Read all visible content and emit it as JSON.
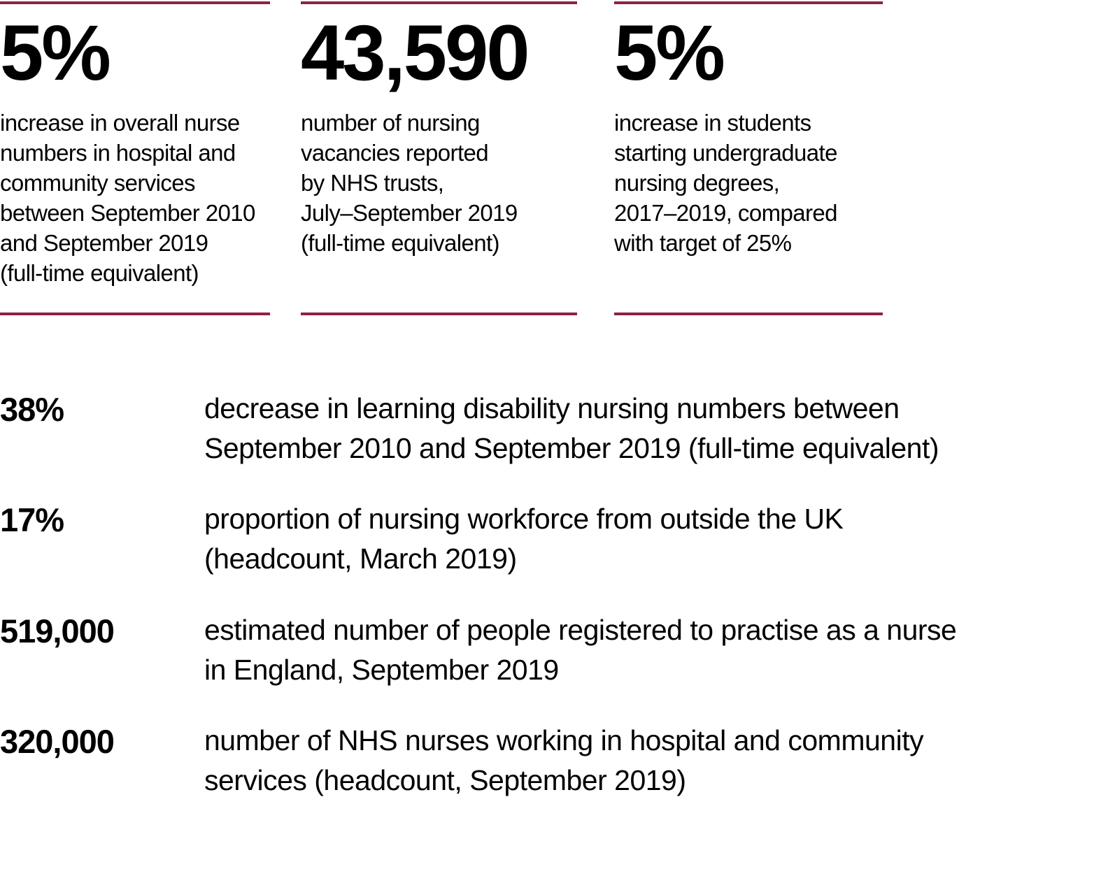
{
  "colors": {
    "accent": "#8e2145",
    "text": "#000000",
    "background": "#ffffff"
  },
  "top_stats": [
    {
      "value": "5%",
      "description_lines": [
        "increase in overall nurse",
        "numbers in hospital and",
        "community services",
        "between September 2010",
        "and September 2019",
        "(full-time equivalent)"
      ]
    },
    {
      "value": "43,590",
      "description_lines": [
        "number of nursing",
        "vacancies reported",
        "by NHS trusts,",
        "July–September 2019",
        "(full-time equivalent)"
      ]
    },
    {
      "value": "5%",
      "description_lines": [
        "increase in students",
        "starting undergraduate",
        "nursing degrees,",
        "2017–2019, compared",
        "with target of 25%"
      ]
    }
  ],
  "key_facts": [
    {
      "value": "38%",
      "description_lines": [
        "decrease in learning disability nursing numbers between",
        "September 2010 and September 2019 (full-time equivalent)"
      ]
    },
    {
      "value": "17%",
      "description_lines": [
        "proportion of nursing workforce from outside the UK",
        "(headcount, March 2019)"
      ]
    },
    {
      "value": "519,000",
      "description_lines": [
        "estimated number of people registered to practise as a nurse",
        "in England, September 2019"
      ]
    },
    {
      "value": "320,000",
      "description_lines": [
        "number of NHS nurses working in hospital and community",
        "services (headcount, September 2019)"
      ]
    }
  ]
}
